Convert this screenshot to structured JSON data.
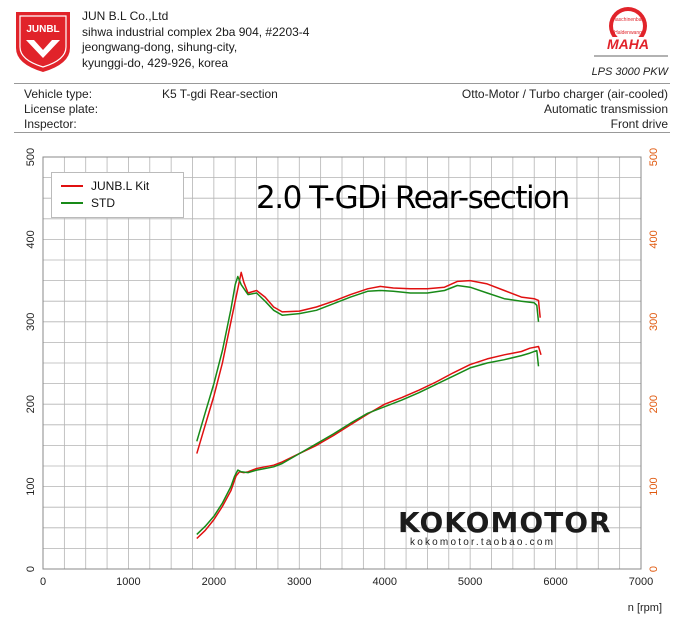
{
  "header": {
    "company_lines": [
      "JUN B.L Co.,Ltd",
      "sihwa industrial complex 2ba 904, #2203-4",
      "jeongwang-dong, sihung-city,",
      "kyunggi-do, 429-926, korea"
    ],
    "logo_text": "JUNBL",
    "maha_badge_top": "Maschinenbau",
    "maha_badge_bottom": "Haldenwang",
    "maha_brand": "MAHA",
    "model": "LPS 3000 PKW",
    "brand_color": "#e1232a"
  },
  "info": {
    "vehicle_type_label": "Vehicle type:",
    "vehicle_type_value": "K5 T-gdi Rear-section",
    "license_label": "License plate:",
    "inspector_label": "Inspector:",
    "engine": "Otto-Motor / Turbo charger (air-cooled)",
    "transmission": "Automatic transmission",
    "drive": "Front drive"
  },
  "watermark": {
    "name": "KOKOMOTOR",
    "url": "kokomotor.taobao.com"
  },
  "chart_data": {
    "type": "line",
    "title": "2.0 T-GDi Rear-section",
    "xlabel": "n [rpm]",
    "xlim": [
      0,
      7000
    ],
    "x_ticks": [
      0,
      1000,
      2000,
      3000,
      4000,
      5000,
      6000,
      7000
    ],
    "ylim": [
      0,
      500
    ],
    "y_ticks": [
      0,
      100,
      200,
      300,
      400,
      500
    ],
    "y_right_ticks": [
      0,
      100,
      200,
      300,
      400,
      500
    ],
    "grid": true,
    "legend_position": "top-left",
    "colors": {
      "kit": "#e01010",
      "std": "#188a18",
      "right_axis": "#e05a10",
      "grid": "#b4b4b4"
    },
    "series": [
      {
        "name": "JUNB.L Kit",
        "group": "upper",
        "color": "#e01010",
        "x": [
          1800,
          1900,
          2000,
          2100,
          2200,
          2280,
          2320,
          2350,
          2400,
          2500,
          2600,
          2700,
          2800,
          3000,
          3200,
          3400,
          3600,
          3800,
          3950,
          4100,
          4300,
          4500,
          4700,
          4850,
          5000,
          5200,
          5400,
          5600,
          5750,
          5800,
          5820
        ],
        "y": [
          140,
          175,
          210,
          250,
          300,
          340,
          360,
          348,
          335,
          338,
          330,
          318,
          312,
          313,
          318,
          325,
          333,
          340,
          343,
          341,
          340,
          340,
          342,
          349,
          350,
          346,
          338,
          330,
          328,
          326,
          305
        ]
      },
      {
        "name": "STD",
        "group": "upper",
        "color": "#188a18",
        "x": [
          1800,
          1900,
          2000,
          2100,
          2200,
          2250,
          2280,
          2320,
          2400,
          2500,
          2600,
          2700,
          2800,
          3000,
          3200,
          3400,
          3600,
          3800,
          3950,
          4100,
          4300,
          4500,
          4700,
          4850,
          5000,
          5200,
          5400,
          5600,
          5750,
          5780,
          5800
        ],
        "y": [
          155,
          190,
          225,
          265,
          315,
          345,
          355,
          345,
          333,
          335,
          325,
          314,
          308,
          310,
          314,
          322,
          330,
          337,
          338,
          337,
          335,
          335,
          338,
          344,
          342,
          335,
          328,
          325,
          323,
          320,
          300
        ]
      },
      {
        "name": "JUNB.L Kit",
        "group": "lower",
        "color": "#e01010",
        "x": [
          1800,
          1900,
          2000,
          2100,
          2200,
          2260,
          2300,
          2350,
          2400,
          2500,
          2600,
          2700,
          2800,
          3000,
          3200,
          3400,
          3600,
          3800,
          4000,
          4200,
          4400,
          4600,
          4800,
          5000,
          5200,
          5400,
          5600,
          5700,
          5800,
          5830
        ],
        "y": [
          37,
          47,
          60,
          76,
          95,
          113,
          118,
          117,
          118,
          122,
          124,
          126,
          130,
          140,
          150,
          162,
          175,
          188,
          200,
          208,
          217,
          227,
          238,
          248,
          255,
          260,
          264,
          268,
          270,
          260
        ]
      },
      {
        "name": "STD",
        "group": "lower",
        "color": "#188a18",
        "x": [
          1800,
          1900,
          2000,
          2100,
          2200,
          2240,
          2280,
          2320,
          2400,
          2500,
          2600,
          2700,
          2800,
          3000,
          3200,
          3400,
          3600,
          3800,
          4000,
          4200,
          4400,
          4600,
          4800,
          5000,
          5200,
          5400,
          5600,
          5700,
          5780,
          5800
        ],
        "y": [
          42,
          52,
          64,
          80,
          100,
          112,
          120,
          118,
          117,
          120,
          122,
          124,
          128,
          140,
          152,
          164,
          177,
          189,
          197,
          205,
          214,
          224,
          234,
          244,
          250,
          254,
          259,
          262,
          265,
          246
        ]
      }
    ]
  }
}
